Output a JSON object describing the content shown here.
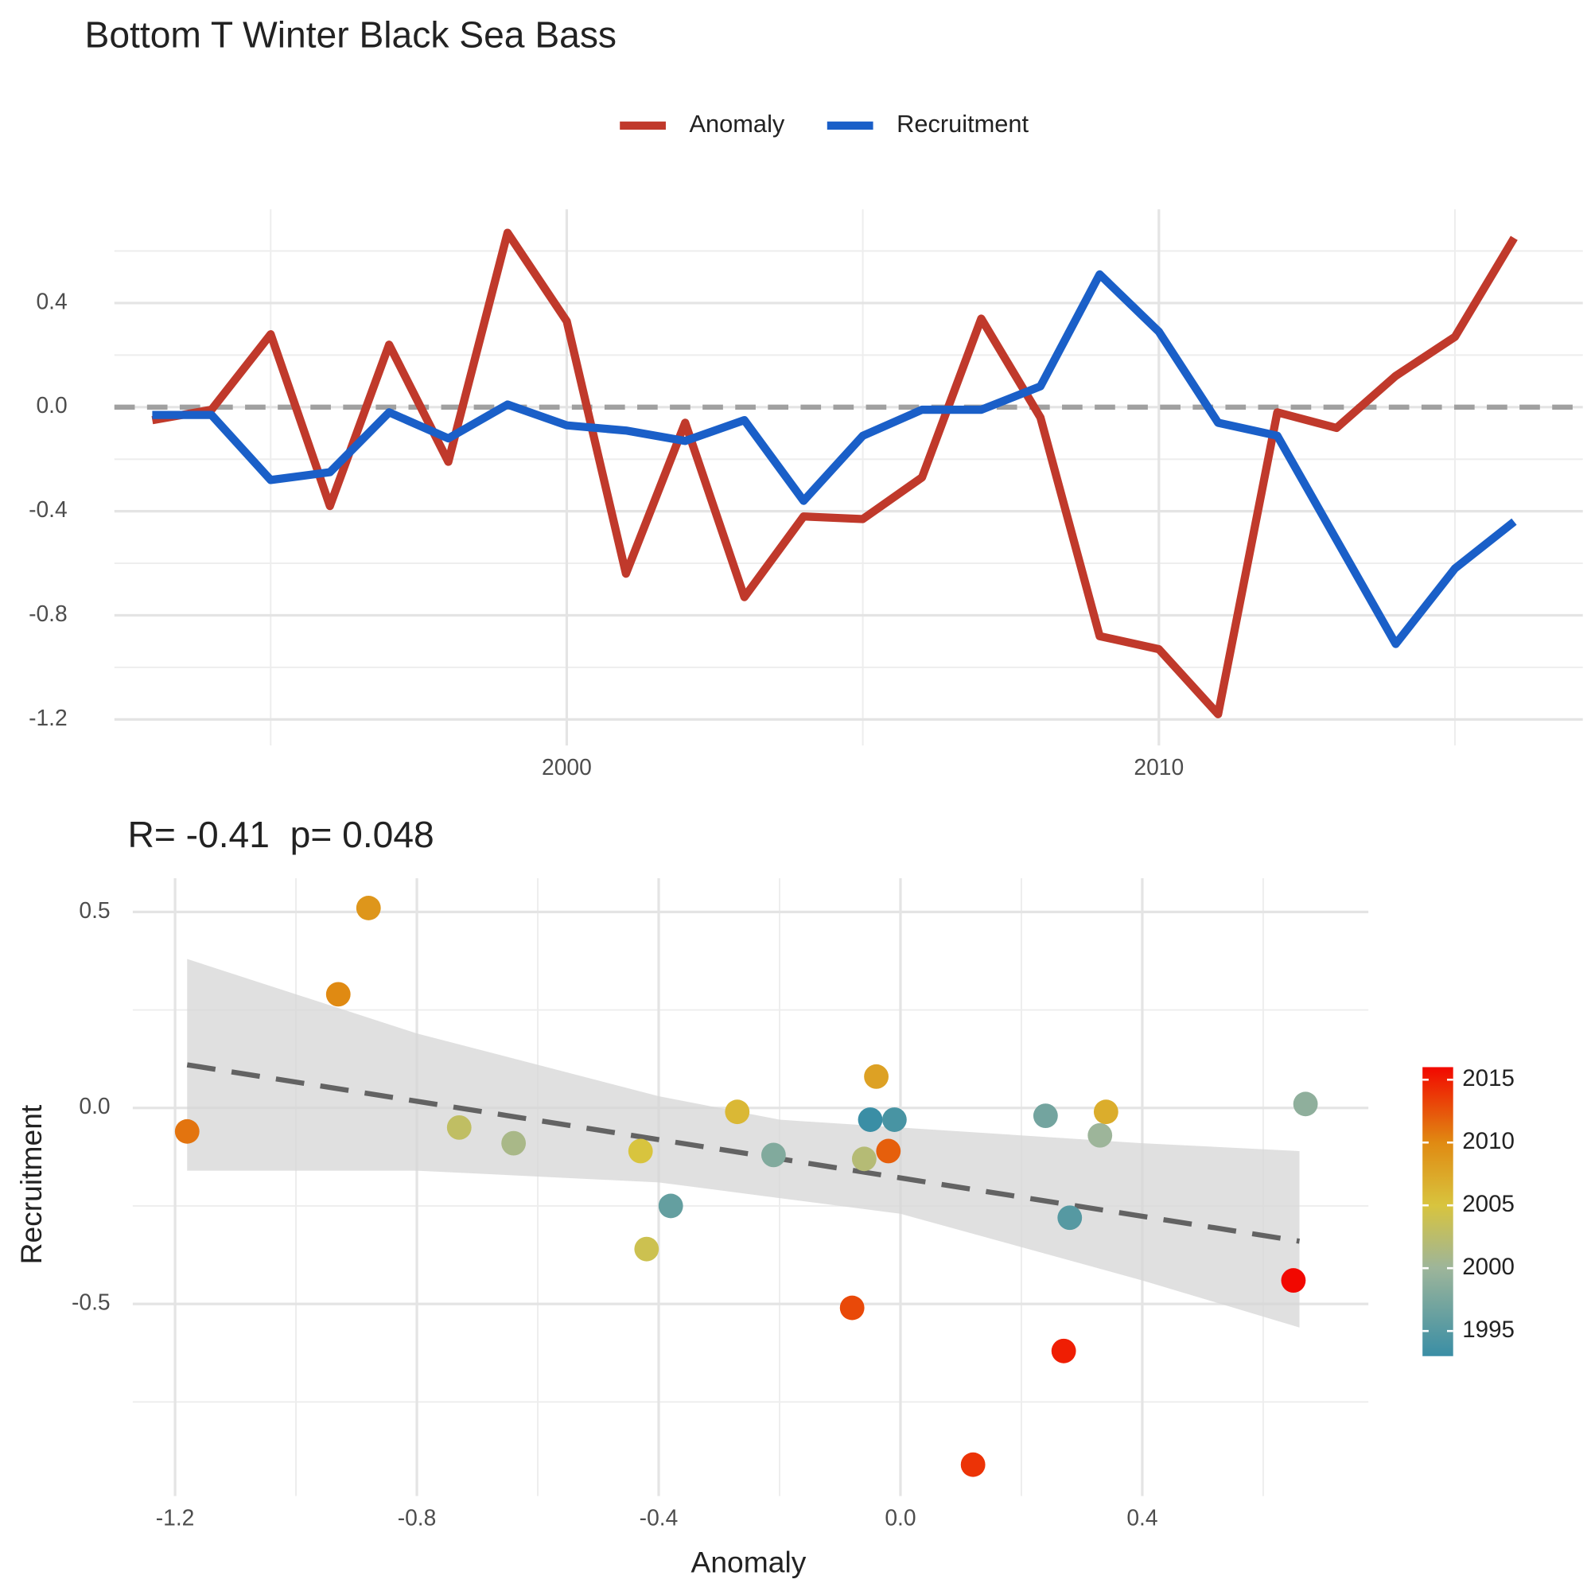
{
  "chart_data": [
    {
      "type": "line",
      "title": "Bottom T Winter Black Sea Bass",
      "x": [
        1993,
        1994,
        1995,
        1996,
        1997,
        1998,
        1999,
        2000,
        2001,
        2002,
        2003,
        2004,
        2005,
        2006,
        2007,
        2008,
        2009,
        2010,
        2011,
        2012,
        2013,
        2014,
        2015,
        2016
      ],
      "series": [
        {
          "name": "Anomaly",
          "color": "#c0392b",
          "values": [
            -0.05,
            -0.01,
            0.28,
            -0.38,
            0.24,
            -0.21,
            0.67,
            0.33,
            -0.64,
            -0.06,
            -0.73,
            -0.42,
            -0.43,
            -0.27,
            0.34,
            -0.04,
            -0.88,
            -0.93,
            -1.18,
            -0.02,
            -0.08,
            0.12,
            0.27,
            0.65
          ]
        },
        {
          "name": "Recruitment",
          "color": "#1a5fc8",
          "values": [
            -0.03,
            -0.03,
            -0.28,
            -0.25,
            -0.02,
            -0.12,
            0.01,
            -0.07,
            -0.09,
            -0.13,
            -0.05,
            -0.36,
            -0.11,
            -0.01,
            -0.01,
            0.08,
            0.51,
            0.29,
            -0.06,
            -0.11,
            -0.51,
            -0.91,
            -0.62,
            -0.44
          ]
        }
      ],
      "xlim": [
        1992.36,
        2017.16
      ],
      "xticks": [
        2000,
        2010
      ],
      "xminor": [
        1995,
        2005,
        2015
      ],
      "ylim": [
        -1.3,
        0.76
      ],
      "yticks": [
        -1.2,
        -0.8,
        -0.4,
        {
          "value": 0,
          "label": "0.0"
        },
        0.4
      ],
      "yminor": [
        -1.0,
        -0.6,
        -0.2,
        0.2,
        0.6
      ],
      "hline": 0,
      "hline_color": "#a0a0a0",
      "grid": true,
      "legend": "top"
    },
    {
      "type": "scatter",
      "title": "R= -0.41  p= 0.048",
      "xlabel": "Anomaly",
      "ylabel": "Recruitment",
      "x": [
        -0.05,
        -0.01,
        0.28,
        -0.38,
        0.24,
        -0.21,
        0.67,
        0.33,
        -0.64,
        -0.06,
        -0.73,
        -0.42,
        -0.43,
        -0.27,
        0.34,
        -0.04,
        -0.88,
        -0.93,
        -1.18,
        -0.02,
        -0.08,
        0.12,
        0.27,
        0.65
      ],
      "y": [
        -0.03,
        -0.03,
        -0.28,
        -0.25,
        -0.02,
        -0.12,
        0.01,
        -0.07,
        -0.09,
        -0.13,
        -0.05,
        -0.36,
        -0.11,
        -0.01,
        -0.01,
        0.08,
        0.51,
        0.29,
        -0.06,
        -0.11,
        -0.51,
        -0.91,
        -0.62,
        -0.44
      ],
      "color_values": [
        1993,
        1994,
        1995,
        1996,
        1997,
        1998,
        1999,
        2000,
        2001,
        2002,
        2003,
        2004,
        2005,
        2006,
        2007,
        2008,
        2009,
        2010,
        2011,
        2012,
        2013,
        2014,
        2015,
        2016
      ],
      "colorscale": [
        {
          "value": 1993,
          "color": "#3a8ea5"
        },
        {
          "value": 2000,
          "color": "#9db59a"
        },
        {
          "value": 2005,
          "color": "#d8c43e"
        },
        {
          "value": 2010,
          "color": "#e08a12"
        },
        {
          "value": 2016,
          "color": "#f20800"
        }
      ],
      "colorbar_lim": [
        1993,
        2016
      ],
      "colorbar_ticks": [
        1995,
        2000,
        2005,
        2010,
        2015
      ],
      "fit_x": [
        -1.18,
        0.66
      ],
      "fit_y": [
        0.11,
        -0.34
      ],
      "band_x": [
        -1.18,
        -0.8,
        -0.4,
        -0.2,
        0.0,
        0.4,
        0.66
      ],
      "band_lower": [
        -0.16,
        -0.16,
        -0.19,
        -0.23,
        -0.27,
        -0.44,
        -0.56
      ],
      "band_upper": [
        0.38,
        0.19,
        0.03,
        -0.03,
        -0.05,
        -0.09,
        -0.11
      ],
      "xlim": [
        -1.27,
        0.774
      ],
      "xticks": [
        -1.2,
        -0.8,
        -0.4,
        {
          "value": 0,
          "label": "0.0"
        },
        0.4
      ],
      "xminor": [
        -1.0,
        -0.6,
        -0.2,
        0.2,
        0.6
      ],
      "ylim": [
        -0.99,
        0.586
      ],
      "yticks": [
        -0.5,
        {
          "value": 0,
          "label": "0.0"
        },
        0.5
      ],
      "yminor": [
        -0.75,
        -0.25,
        0.25
      ],
      "grid": true
    }
  ]
}
